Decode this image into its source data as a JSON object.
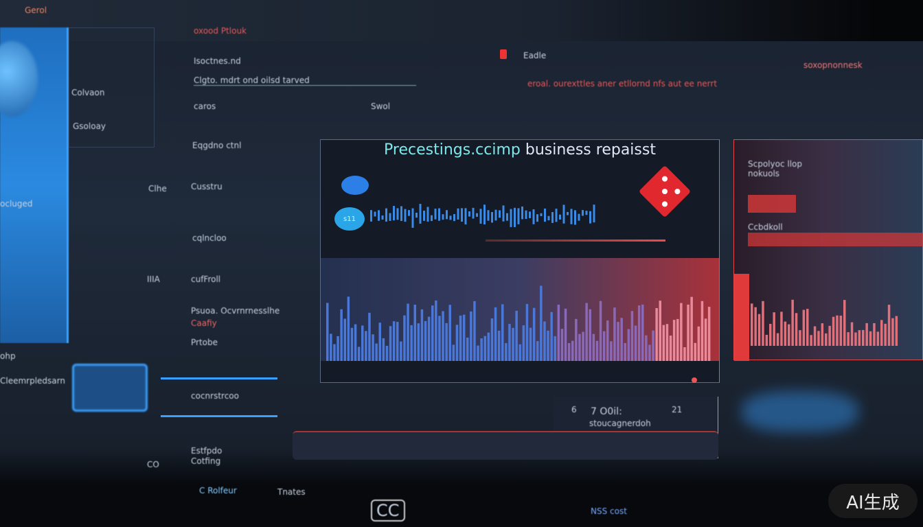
{
  "header": {
    "top_left": "Gerol",
    "top_label": "oxood Ptlouk",
    "item1": "Eadle",
    "item2": "soxopnonnesk",
    "status_text": "eroal. ourexttles aner etllornd nfs aut ee nerrt"
  },
  "form": {
    "field1": "Isoctnes.nd",
    "field2": "Clgto. mdrt ond oilsd tarved",
    "field3": "caros",
    "field4": "Swol",
    "left_label1": "Colvaon",
    "left_label2": "Gsoloay",
    "left_label3": "Eqgdno ctnl"
  },
  "sidebar": {
    "label1": "ocluged",
    "label2": "ohp",
    "label3": "Cleemrpledsarn"
  },
  "list": {
    "rows": [
      "Clhe",
      "Cusstru",
      "cqlncloo",
      "IIIA",
      "cufFroll",
      "Psuoa. Ocvrnrnesslhe",
      "Caafiy",
      "Prtobe",
      "cocnrstrcoo",
      "Estfpdo",
      "Cotfing",
      "CO"
    ]
  },
  "main": {
    "title_accent": "Precestings.ccimp",
    "title_rest": " business repaisst",
    "badge_text": "s11"
  },
  "right": {
    "label1": "Scpolyoc llop",
    "label2": "nokuols",
    "label3": "Ccbdkoll"
  },
  "bottom": {
    "value": "7 O0il:",
    "sub": "stoucagnerdoh",
    "num1": "6",
    "num2": "21",
    "footer1": "C Rolfeur",
    "footer2": "Tnates",
    "footer3": "CC",
    "footer4": "NSS cost"
  },
  "watermark": "AI生成",
  "colors": {
    "accent_blue": "#2f8ae8",
    "accent_red": "#e0282e",
    "accent_cyan": "#7ee8ea"
  }
}
